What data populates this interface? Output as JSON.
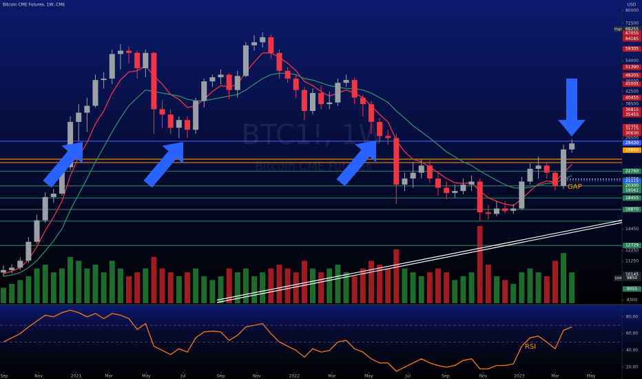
{
  "chart_data": [
    {
      "type": "candlestick",
      "title": "Bitcoin CME Futures, 1W, CME",
      "currency": "USD",
      "watermark": "BTC1!, 1W",
      "watermark_sub": "Bitcoin CME Futures",
      "annotations": [
        "GAP"
      ],
      "log": true,
      "grid": false,
      "xlim": [
        0,
        74
      ],
      "ylim": [
        8100,
        87000
      ],
      "yticks": [
        80000,
        72500,
        54000,
        46000,
        42500,
        38500,
        29500,
        14450,
        12250,
        11250,
        8300
      ],
      "up_color": "#9aa0a6",
      "down_color": "#f23645",
      "open": [
        10300,
        10500,
        10700,
        11300,
        13100,
        15500,
        18600,
        19100,
        23500,
        33500,
        36000,
        38000,
        46500,
        47000,
        57000,
        58500,
        57500,
        51000,
        57500,
        37000,
        35500,
        32000,
        34000,
        31500,
        39500,
        46000,
        47500,
        48500,
        43000,
        48000,
        61000,
        62500,
        65000,
        57500,
        50000,
        47000,
        43000,
        36500,
        42000,
        38500,
        39000,
        45500,
        46500,
        40500,
        38500,
        33500,
        30000,
        29500,
        20500,
        21500,
        22500,
        23800,
        21500,
        20000,
        19200,
        19500,
        20500,
        21000,
        16500,
        16300,
        17000,
        16700,
        17000,
        21000,
        23200,
        23800,
        22500,
        20300,
        27000
      ],
      "high": [
        10900,
        11000,
        11600,
        13600,
        16200,
        19300,
        19800,
        24300,
        35000,
        38500,
        40500,
        48500,
        49500,
        59000,
        61500,
        60500,
        58500,
        59000,
        58000,
        39500,
        37000,
        35000,
        35000,
        40500,
        47000,
        48500,
        50500,
        49000,
        50000,
        62500,
        66000,
        67500,
        66500,
        59000,
        51500,
        48500,
        44000,
        43500,
        44500,
        42500,
        47000,
        48500,
        47500,
        41500,
        39500,
        34500,
        31500,
        30500,
        22500,
        24500,
        25000,
        24800,
        22500,
        21000,
        20500,
        21500,
        22000,
        21500,
        17500,
        18000,
        18000,
        17600,
        21800,
        24200,
        25500,
        24500,
        22800,
        28000,
        29200
      ],
      "low": [
        10000,
        10200,
        10500,
        11100,
        12900,
        15200,
        17800,
        18800,
        23000,
        28800,
        31000,
        37500,
        43500,
        45000,
        50500,
        53000,
        47000,
        47500,
        30500,
        32000,
        30500,
        29500,
        29500,
        30500,
        37500,
        44000,
        45000,
        40000,
        40500,
        47500,
        58500,
        60000,
        55000,
        47000,
        45500,
        40500,
        34000,
        35500,
        37000,
        37000,
        38000,
        44000,
        38500,
        35000,
        30500,
        28500,
        28000,
        17600,
        19500,
        20000,
        21500,
        20800,
        18800,
        18300,
        18500,
        19000,
        19500,
        15500,
        15600,
        16000,
        16400,
        16300,
        16800,
        20500,
        21500,
        21500,
        19600,
        19800,
        26300
      ],
      "close": [
        10500,
        10700,
        11300,
        13100,
        15500,
        18600,
        19100,
        23500,
        33500,
        36000,
        38000,
        46500,
        47000,
        57000,
        58500,
        57500,
        51000,
        57500,
        37000,
        35500,
        32000,
        34000,
        31500,
        39500,
        46000,
        47500,
        48500,
        43000,
        48000,
        61000,
        62500,
        65000,
        57500,
        50000,
        47000,
        43000,
        36500,
        42000,
        38500,
        39000,
        45500,
        46500,
        40500,
        38500,
        33500,
        30000,
        29500,
        20500,
        21500,
        22500,
        23800,
        21500,
        20000,
        19200,
        19500,
        20500,
        21000,
        16500,
        16300,
        17000,
        16700,
        17000,
        21000,
        23200,
        23800,
        22500,
        20300,
        27000,
        28300
      ],
      "series": [
        {
          "color": "#e8364a",
          "values": [
            10200,
            10400,
            10700,
            11400,
            12600,
            14300,
            15900,
            18000,
            22000,
            25500,
            28500,
            33000,
            36500,
            42000,
            46500,
            49500,
            50000,
            52000,
            48000,
            45000,
            41500,
            40000,
            37500,
            38000,
            40000,
            42500,
            44500,
            44000,
            45000,
            49500,
            53500,
            57500,
            57500,
            55500,
            53000,
            50000,
            46000,
            44500,
            42500,
            41000,
            42000,
            43000,
            42000,
            40500,
            38000,
            35500,
            33500,
            29000,
            26500,
            25000,
            24500,
            23500,
            22500,
            21500,
            20800,
            20700,
            20800,
            19500,
            18500,
            18000,
            17600,
            17400,
            18300,
            19500,
            20600,
            21100,
            20900,
            22500,
            24000
          ]
        },
        {
          "color": "#2e8b6a",
          "values": [
            10000,
            10100,
            10300,
            10700,
            11300,
            12200,
            13200,
            14500,
            16800,
            19000,
            21500,
            24500,
            27500,
            31000,
            34500,
            38000,
            40500,
            43000,
            42500,
            42000,
            41500,
            41000,
            40000,
            39500,
            39500,
            40000,
            40500,
            41000,
            41500,
            43000,
            45000,
            47000,
            48500,
            49000,
            49000,
            48500,
            47000,
            46500,
            45500,
            44500,
            44000,
            43500,
            43500,
            43000,
            42000,
            40500,
            39000,
            36500,
            34500,
            32500,
            31000,
            29500,
            28000,
            26500,
            25500,
            24500,
            23800,
            22800,
            22000,
            21200,
            20500,
            20000,
            19900,
            20100,
            20400,
            20700,
            20800,
            21400,
            22000
          ]
        }
      ],
      "vlim": [
        0,
        100
      ],
      "volume_up_color": "#1e6b2e",
      "volume_down_color": "#a01c25",
      "volume": [
        20,
        25,
        30,
        35,
        45,
        50,
        40,
        45,
        60,
        55,
        45,
        50,
        40,
        55,
        45,
        35,
        40,
        45,
        60,
        45,
        40,
        35,
        40,
        45,
        35,
        30,
        35,
        45,
        40,
        45,
        35,
        40,
        45,
        50,
        45,
        40,
        55,
        45,
        40,
        45,
        50,
        40,
        35,
        45,
        55,
        50,
        45,
        70,
        45,
        40,
        35,
        40,
        45,
        40,
        30,
        35,
        40,
        100,
        50,
        35,
        30,
        25,
        40,
        45,
        40,
        35,
        55,
        65,
        40
      ],
      "levels": [
        {
          "value": 28800,
          "color": "#3d5afe",
          "style": "solid"
        },
        {
          "value": 25020,
          "color": "#ff9800",
          "style": "solid"
        },
        {
          "value": 24360,
          "color": "#ff9800",
          "style": "solid"
        },
        {
          "value": 22760,
          "color": "#2e7d5b",
          "style": "solid"
        },
        {
          "value": 21390,
          "color": "#ffffff",
          "style": "dotted"
        },
        {
          "value": 21115,
          "color": "#5c7cff",
          "style": "dotted"
        },
        {
          "value": 20300,
          "color": "#2e7d5b",
          "style": "solid"
        },
        {
          "value": 18455,
          "color": "#2e7d5b",
          "style": "solid"
        },
        {
          "value": 16870,
          "color": "#2e7d5b",
          "style": "solid"
        },
        {
          "value": 15405,
          "color": "#2e7d5b",
          "style": "solid"
        },
        {
          "value": 12729,
          "color": "#2e7d5b",
          "style": "solid"
        }
      ],
      "price_labels": [
        {
          "value": 69255,
          "color": "#2a2e39",
          "tag": "High"
        },
        {
          "value": 67055,
          "color": "#b71c2c"
        },
        {
          "value": 64185,
          "color": "#b71c2c"
        },
        {
          "value": 59305,
          "color": "#b71c2c"
        },
        {
          "value": 51390,
          "color": "#b71c2c"
        },
        {
          "value": 48205,
          "color": "#b71c2c"
        },
        {
          "value": 45005,
          "color": "#b71c2c"
        },
        {
          "value": 40455,
          "color": "#b71c2c"
        },
        {
          "value": 36815,
          "color": "#b71c2c"
        },
        {
          "value": 35455,
          "color": "#b71c2c"
        },
        {
          "value": 32255,
          "color": "#b71c2c"
        },
        {
          "value": 31775,
          "color": "#b71c2c"
        },
        {
          "value": 30630,
          "color": "#b71c2c"
        },
        {
          "value": 28430,
          "color": "#3d5afe"
        },
        {
          "value": 26860,
          "color": "#ff9800"
        },
        {
          "value": 22760,
          "color": "#2e7d5b"
        },
        {
          "value": 21390,
          "color": "#1e222d"
        },
        {
          "value": 21115,
          "color": "#2962ff"
        },
        {
          "value": 20300,
          "color": "#2e7d5b"
        },
        {
          "value": 19561,
          "color": "#2e7d5b"
        },
        {
          "value": 18455,
          "color": "#2e7d5b"
        },
        {
          "value": 16870,
          "color": "#2e7d5b"
        },
        {
          "value": 12729,
          "color": "#2e7d5b"
        },
        {
          "value": 10145,
          "color": "#1e222d"
        },
        {
          "value": 9850,
          "color": "#1e222d",
          "tag": "Low"
        },
        {
          "value": 9055,
          "color": "#2e7d5b"
        }
      ]
    },
    {
      "type": "line",
      "annotations": [
        "RSI"
      ],
      "color": "#e8731a",
      "xlim": [
        0,
        74
      ],
      "ylim": [
        10,
        93
      ],
      "yticks": [
        {
          "value": 80,
          "label": "80.00"
        },
        {
          "value": 60,
          "label": "60.00"
        },
        {
          "value": 40,
          "label": "40.00"
        },
        {
          "value": 20,
          "label": "20.00"
        }
      ],
      "bands": [
        70,
        50
      ],
      "xticks": [
        {
          "value": 0,
          "label": "Sep"
        },
        {
          "value": 4.2,
          "label": "Nov"
        },
        {
          "value": 8.7,
          "label": "2021"
        },
        {
          "value": 12.6,
          "label": "Mar"
        },
        {
          "value": 17.1,
          "label": "May"
        },
        {
          "value": 21.5,
          "label": "Jul"
        },
        {
          "value": 26,
          "label": "Sep"
        },
        {
          "value": 30.3,
          "label": "Nov"
        },
        {
          "value": 34.8,
          "label": "2022"
        },
        {
          "value": 39.3,
          "label": "Mar"
        },
        {
          "value": 43.7,
          "label": "May"
        },
        {
          "value": 48.4,
          "label": "Jul"
        },
        {
          "value": 52.9,
          "label": "Sep"
        },
        {
          "value": 57.4,
          "label": "Nov"
        },
        {
          "value": 61.7,
          "label": "2023"
        },
        {
          "value": 66,
          "label": "Mar"
        },
        {
          "value": 70.3,
          "label": "May"
        }
      ],
      "values": [
        50,
        55,
        60,
        68,
        75,
        82,
        80,
        85,
        88,
        85,
        80,
        84,
        78,
        84,
        82,
        78,
        65,
        72,
        45,
        40,
        35,
        42,
        38,
        55,
        62,
        63,
        62,
        52,
        58,
        68,
        70,
        72,
        60,
        50,
        45,
        40,
        32,
        42,
        38,
        40,
        50,
        52,
        42,
        38,
        30,
        25,
        25,
        15,
        20,
        25,
        30,
        25,
        22,
        20,
        22,
        28,
        30,
        18,
        18,
        22,
        22,
        24,
        45,
        55,
        57,
        50,
        42,
        64,
        68
      ]
    }
  ]
}
